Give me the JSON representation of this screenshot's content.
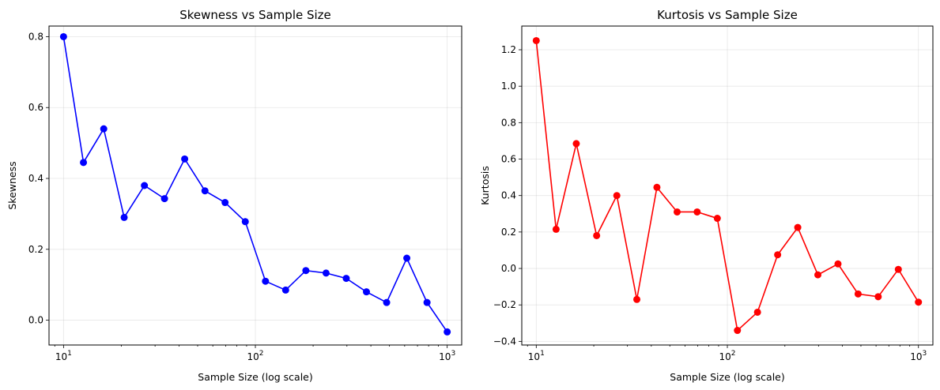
{
  "chart_data": [
    {
      "type": "line",
      "title": "Skewness vs Sample Size",
      "xlabel": "Sample Size (log scale)",
      "ylabel": "Skewness",
      "xscale": "log",
      "xlim": [
        8.4,
        1190
      ],
      "ylim": [
        -0.07,
        0.83
      ],
      "xticks": [
        {
          "base": "10",
          "exp": "1"
        },
        {
          "base": "10",
          "exp": "2"
        },
        {
          "base": "10",
          "exp": "3"
        }
      ],
      "yticks": [
        "0.0",
        "0.2",
        "0.4",
        "0.6",
        "0.8"
      ],
      "grid": true,
      "color": "#0000ff",
      "series": [
        {
          "x": [
            10,
            12.7,
            16.2,
            20.7,
            26.4,
            33.6,
            42.8,
            54.6,
            69.5,
            88.6,
            112.9,
            143.8,
            183.3,
            233.6,
            297.6,
            379.3,
            483.3,
            615.8,
            784.8,
            1000
          ],
          "values": [
            0.8,
            0.445,
            0.54,
            0.29,
            0.38,
            0.343,
            0.455,
            0.365,
            0.332,
            0.278,
            0.11,
            0.085,
            0.14,
            0.133,
            0.118,
            0.08,
            0.05,
            0.175,
            0.05,
            -0.033
          ]
        }
      ]
    },
    {
      "type": "line",
      "title": "Kurtosis vs Sample Size",
      "xlabel": "Sample Size (log scale)",
      "ylabel": "Kurtosis",
      "xscale": "log",
      "xlim": [
        8.4,
        1190
      ],
      "ylim": [
        -0.42,
        1.33
      ],
      "xticks": [
        {
          "base": "10",
          "exp": "1"
        },
        {
          "base": "10",
          "exp": "2"
        },
        {
          "base": "10",
          "exp": "3"
        }
      ],
      "yticks": [
        "−0.4",
        "−0.2",
        "0.0",
        "0.2",
        "0.4",
        "0.6",
        "0.8",
        "1.0",
        "1.2"
      ],
      "grid": true,
      "color": "#ff0000",
      "series": [
        {
          "x": [
            10,
            12.7,
            16.2,
            20.7,
            26.4,
            33.6,
            42.8,
            54.6,
            69.5,
            88.6,
            112.9,
            143.8,
            183.3,
            233.6,
            297.6,
            379.3,
            483.3,
            615.8,
            784.8,
            1000
          ],
          "values": [
            1.25,
            0.215,
            0.685,
            0.18,
            0.4,
            -0.17,
            0.445,
            0.31,
            0.31,
            0.275,
            -0.34,
            -0.24,
            0.075,
            0.225,
            -0.035,
            0.025,
            -0.14,
            -0.155,
            -0.005,
            -0.185
          ]
        }
      ]
    }
  ]
}
